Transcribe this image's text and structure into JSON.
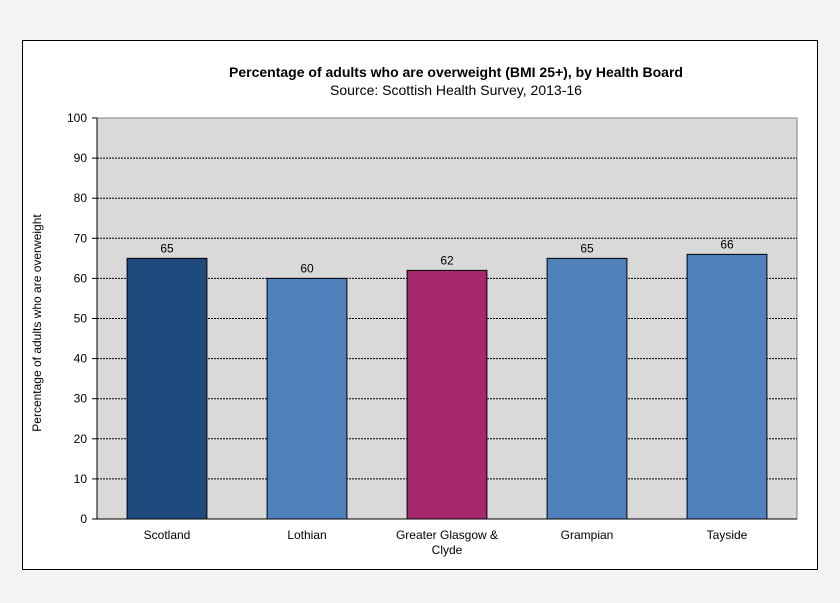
{
  "chart_data": {
    "type": "bar",
    "title": "Percentage of adults who are overweight (BMI 25+), by Health Board",
    "subtitle": "Source: Scottish Health Survey, 2013-16",
    "ylabel": "Percentage of adults who are overweight",
    "xlabel": "",
    "ylim": [
      0,
      100
    ],
    "yticks": [
      0,
      10,
      20,
      30,
      40,
      50,
      60,
      70,
      80,
      90,
      100
    ],
    "grid": true,
    "categories": [
      [
        "Scotland"
      ],
      [
        "Lothian"
      ],
      [
        "Greater Glasgow &",
        "Clyde"
      ],
      [
        "Grampian"
      ],
      [
        "Tayside"
      ]
    ],
    "values": [
      65,
      60,
      62,
      65,
      66
    ],
    "bar_colors": [
      "#1f4a7d",
      "#4f81bd",
      "#a5286e",
      "#4f81bd",
      "#4f81bd"
    ],
    "plot_background": "#d9d9d9"
  }
}
